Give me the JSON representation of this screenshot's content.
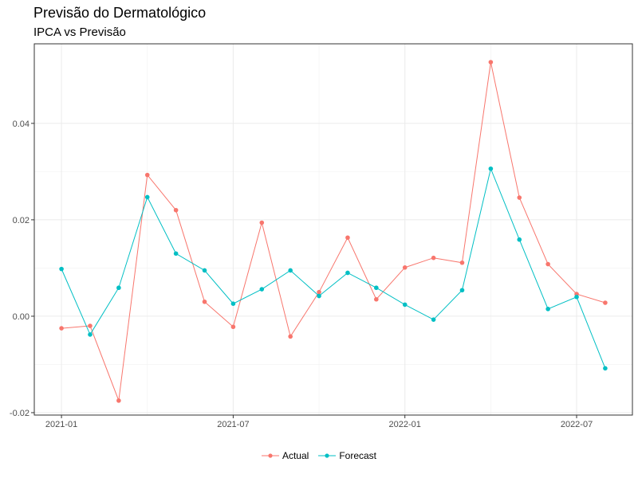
{
  "chart_data": {
    "type": "line",
    "title": "Previsão do Dermatológico",
    "subtitle": "IPCA vs Previsão",
    "xlabel": "",
    "ylabel": "",
    "x": [
      "2021-01",
      "2021-02",
      "2021-03",
      "2021-04",
      "2021-05",
      "2021-06",
      "2021-07",
      "2021-08",
      "2021-09",
      "2021-10",
      "2021-11",
      "2021-12",
      "2022-01",
      "2022-02",
      "2022-03",
      "2022-04",
      "2022-05",
      "2022-06",
      "2022-07",
      "2022-08"
    ],
    "x_ticks": [
      "2021-01",
      "2021-07",
      "2022-01",
      "2022-07"
    ],
    "y_ticks": [
      -0.02,
      0.0,
      0.02,
      0.04
    ],
    "y_tick_labels": [
      "-0.02",
      "0.00",
      "0.02",
      "0.04"
    ],
    "ylim": [
      -0.0205,
      0.0565
    ],
    "grid": true,
    "legend_position": "bottom",
    "series": [
      {
        "name": "Actual",
        "color": "#F8766D",
        "values": [
          -0.0025,
          -0.002,
          -0.0175,
          0.0293,
          0.022,
          0.003,
          -0.0022,
          0.0194,
          -0.0042,
          0.005,
          0.0163,
          0.0035,
          0.0101,
          0.0121,
          0.0111,
          0.0527,
          0.0246,
          0.0108,
          0.0046,
          0.0028
        ]
      },
      {
        "name": "Forecast",
        "color": "#00BFC4",
        "values": [
          0.0098,
          -0.0038,
          0.0059,
          0.0247,
          0.013,
          0.0095,
          0.0026,
          0.0056,
          0.0095,
          0.0042,
          0.009,
          0.0059,
          0.0024,
          -0.0007,
          0.0054,
          0.0306,
          0.0159,
          0.0015,
          0.004,
          -0.0108
        ]
      }
    ]
  }
}
